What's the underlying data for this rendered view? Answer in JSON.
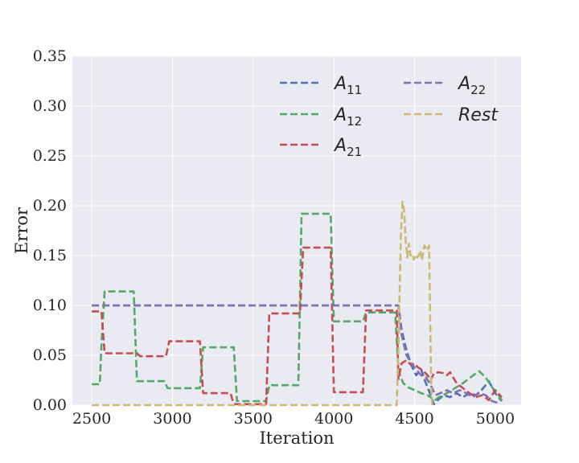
{
  "chart_data": {
    "type": "line",
    "xlabel": "Iteration",
    "ylabel": "Error",
    "xlim": [
      2380,
      5160
    ],
    "ylim": [
      0,
      0.35
    ],
    "xticks": [
      "2500",
      "3000",
      "3500",
      "4000",
      "4500",
      "5000"
    ],
    "yticks": [
      "0.00",
      "0.05",
      "0.10",
      "0.15",
      "0.20",
      "0.25",
      "0.30",
      "0.35"
    ],
    "grid": true,
    "legend_position": "top-right",
    "style": "dashed",
    "background": "#EAEAF2",
    "series": [
      {
        "name": "A11",
        "legend_main": "A",
        "legend_sub": "11",
        "color": "#4C72B0",
        "x": [
          2500,
          4400,
          4420,
          4450,
          4480,
          4510,
          4540,
          4570,
          4600,
          4620,
          4650,
          4680,
          4720,
          4760,
          4800,
          4840,
          4880,
          4920,
          4960,
          5000,
          5040
        ],
        "y": [
          0.1,
          0.1,
          0.075,
          0.055,
          0.04,
          0.03,
          0.036,
          0.022,
          0.01,
          0.001,
          0.006,
          0.01,
          0.008,
          0.012,
          0.008,
          0.012,
          0.01,
          0.016,
          0.024,
          0.012,
          0.004
        ]
      },
      {
        "name": "A12",
        "legend_main": "A",
        "legend_sub": "12",
        "color": "#55A868",
        "x": [
          2500,
          2550,
          2560,
          2580,
          2760,
          2780,
          2950,
          2970,
          3170,
          3190,
          3380,
          3400,
          3580,
          3600,
          3780,
          3800,
          3980,
          4000,
          4180,
          4200,
          4380,
          4400,
          4410,
          4430,
          4460,
          4500,
          4540,
          4580,
          4600,
          4620,
          4650,
          4700,
          4760,
          4800,
          4840,
          4880,
          4900,
          4940,
          4980,
          5020,
          5040
        ],
        "y": [
          0.021,
          0.021,
          0.06,
          0.114,
          0.114,
          0.024,
          0.024,
          0.017,
          0.017,
          0.058,
          0.058,
          0.004,
          0.004,
          0.02,
          0.02,
          0.192,
          0.192,
          0.084,
          0.084,
          0.093,
          0.093,
          0.035,
          0.03,
          0.022,
          0.018,
          0.015,
          0.012,
          0.01,
          0.008,
          0.004,
          0.008,
          0.012,
          0.018,
          0.022,
          0.027,
          0.032,
          0.034,
          0.028,
          0.018,
          0.01,
          0.005
        ]
      },
      {
        "name": "A21",
        "legend_main": "A",
        "legend_sub": "21",
        "color": "#C44E52",
        "x": [
          2500,
          2560,
          2580,
          2780,
          2800,
          2960,
          2980,
          3170,
          3190,
          3360,
          3380,
          3580,
          3600,
          3790,
          3810,
          3980,
          4000,
          4180,
          4200,
          4390,
          4400,
          4420,
          4450,
          4480,
          4500,
          4520,
          4550,
          4580,
          4600,
          4620,
          4650,
          4680,
          4700,
          4720,
          4760,
          4800,
          4840,
          4880,
          4920,
          4960,
          5000,
          5040
        ],
        "y": [
          0.094,
          0.094,
          0.052,
          0.052,
          0.049,
          0.049,
          0.064,
          0.064,
          0.012,
          0.012,
          0.001,
          0.001,
          0.092,
          0.092,
          0.158,
          0.158,
          0.013,
          0.013,
          0.095,
          0.095,
          0.026,
          0.042,
          0.045,
          0.04,
          0.042,
          0.038,
          0.035,
          0.03,
          0.025,
          0.032,
          0.033,
          0.032,
          0.03,
          0.033,
          0.022,
          0.017,
          0.012,
          0.008,
          0.01,
          0.005,
          0.015,
          0.008
        ]
      },
      {
        "name": "A22",
        "legend_main": "A",
        "legend_sub": "22",
        "color": "#8172B2",
        "x": [
          2500,
          4400,
          4420,
          4450,
          4480,
          4510,
          4540,
          4570,
          4600,
          4630,
          4660,
          4700,
          4740,
          4780,
          4820,
          4860,
          4900,
          4940,
          4980,
          5020
        ],
        "y": [
          0.1,
          0.1,
          0.07,
          0.05,
          0.042,
          0.036,
          0.03,
          0.028,
          0.02,
          0.01,
          0.012,
          0.015,
          0.012,
          0.015,
          0.012,
          0.008,
          0.012,
          0.01,
          0.004,
          0.002
        ]
      },
      {
        "name": "Rest",
        "legend_main": "Rest",
        "legend_sub": "",
        "color": "#CCB974",
        "x": [
          2500,
          4390,
          4400,
          4415,
          4425,
          4435,
          4445,
          4455,
          4465,
          4475,
          4485,
          4495,
          4505,
          4515,
          4525,
          4535,
          4545,
          4560,
          4570,
          4580,
          4590,
          4600,
          4605,
          4610
        ],
        "y": [
          0,
          0,
          0.06,
          0.17,
          0.204,
          0.195,
          0.165,
          0.148,
          0.162,
          0.15,
          0.152,
          0.146,
          0.151,
          0.148,
          0.15,
          0.155,
          0.145,
          0.16,
          0.158,
          0.155,
          0.16,
          0.05,
          0.01,
          0
        ]
      }
    ]
  }
}
